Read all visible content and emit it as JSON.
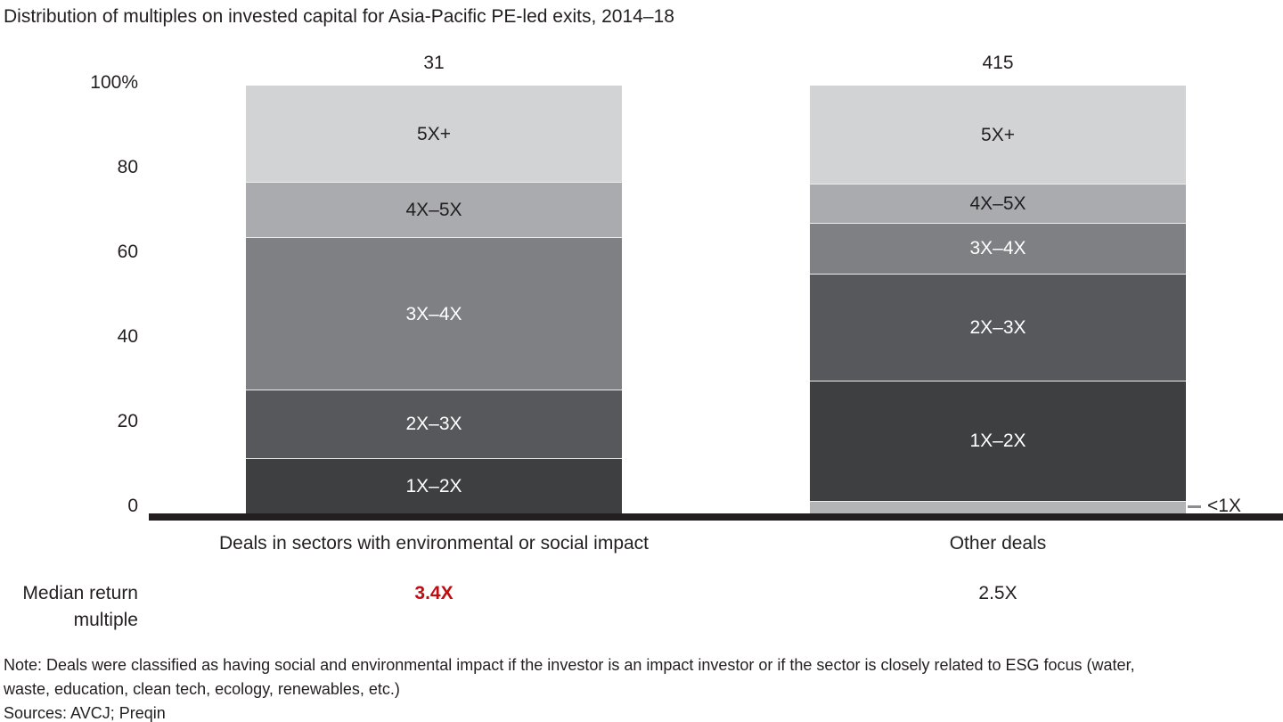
{
  "title": "Distribution of multiples on invested capital for Asia-Pacific PE-led exits, 2014–18",
  "chart_data": {
    "type": "bar",
    "stacked": true,
    "value_unit": "percent of deals",
    "ylim": [
      0,
      100
    ],
    "grid": false,
    "y_ticks": [
      "100%",
      "80",
      "60",
      "40",
      "20",
      "0"
    ],
    "categories": [
      "Deals in sectors with environmental or social impact",
      "Other deals"
    ],
    "bars": [
      {
        "category": "Deals in sectors with environmental or social impact",
        "total_deals": "31",
        "median_return_multiple": "3.4X",
        "median_highlighted": true,
        "segments": [
          {
            "label": "1X–2X",
            "value": 12.9,
            "color": "#3e3f41",
            "label_color": "#ffffff",
            "label_inside": true
          },
          {
            "label": "2X–3X",
            "value": 16.1,
            "color": "#57585c",
            "label_color": "#ffffff",
            "label_inside": true
          },
          {
            "label": "3X–4X",
            "value": 35.5,
            "color": "#7e8084",
            "label_color": "#ffffff",
            "label_inside": true
          },
          {
            "label": "4X–5X",
            "value": 12.9,
            "color": "#a9abae",
            "label_color": "#231f20",
            "label_inside": true
          },
          {
            "label": "5X+",
            "value": 22.6,
            "color": "#d2d3d5",
            "label_color": "#231f20",
            "label_inside": true
          }
        ]
      },
      {
        "category": "Other deals",
        "total_deals": "415",
        "median_return_multiple": "2.5X",
        "median_highlighted": false,
        "segments": [
          {
            "label": "<1X",
            "value": 3,
            "color": "#b2b4b6",
            "label_color": "#231f20",
            "label_inside": false
          },
          {
            "label": "1X–2X",
            "value": 28,
            "color": "#3e3f41",
            "label_color": "#ffffff",
            "label_inside": true
          },
          {
            "label": "2X–3X",
            "value": 25,
            "color": "#57585c",
            "label_color": "#ffffff",
            "label_inside": true
          },
          {
            "label": "3X–4X",
            "value": 12,
            "color": "#7e8084",
            "label_color": "#ffffff",
            "label_inside": true
          },
          {
            "label": "4X–5X",
            "value": 9,
            "color": "#a9abae",
            "label_color": "#231f20",
            "label_inside": true
          },
          {
            "label": "5X+",
            "value": 23,
            "color": "#d2d3d5",
            "label_color": "#231f20",
            "label_inside": true
          }
        ]
      }
    ]
  },
  "median_row": {
    "line1": "Median return",
    "line2": "multiple"
  },
  "note": {
    "line1": "Note: Deals were classified as having social and environmental impact if the investor is an impact investor or if the sector is closely related to ESG focus (water,",
    "line2": "waste, education, clean tech, ecology, renewables, etc.)",
    "sources": "Sources: AVCJ; Preqin"
  },
  "colors": {
    "text": "#231f20",
    "axis_line": "#231f20",
    "median_highlight": "#c00d11",
    "segment_separator": "#eeeeee",
    "callout_dash": "#8b8d90"
  }
}
